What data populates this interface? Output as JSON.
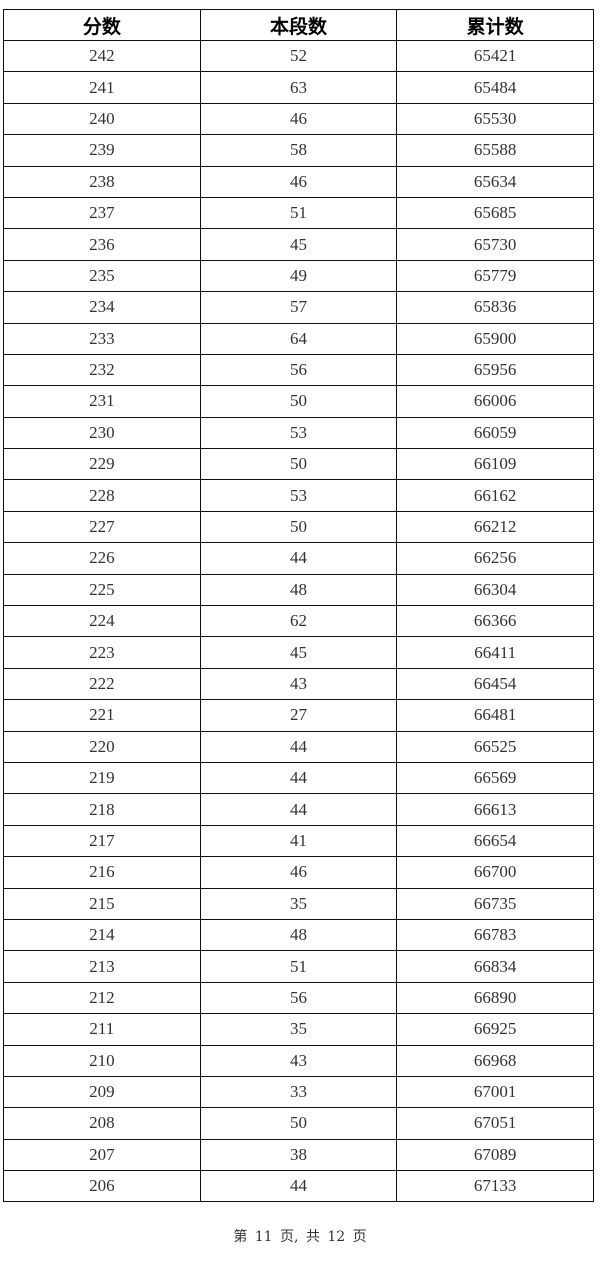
{
  "table": {
    "headers": [
      "分数",
      "本段数",
      "累计数"
    ],
    "rows": [
      [
        "242",
        "52",
        "65421"
      ],
      [
        "241",
        "63",
        "65484"
      ],
      [
        "240",
        "46",
        "65530"
      ],
      [
        "239",
        "58",
        "65588"
      ],
      [
        "238",
        "46",
        "65634"
      ],
      [
        "237",
        "51",
        "65685"
      ],
      [
        "236",
        "45",
        "65730"
      ],
      [
        "235",
        "49",
        "65779"
      ],
      [
        "234",
        "57",
        "65836"
      ],
      [
        "233",
        "64",
        "65900"
      ],
      [
        "232",
        "56",
        "65956"
      ],
      [
        "231",
        "50",
        "66006"
      ],
      [
        "230",
        "53",
        "66059"
      ],
      [
        "229",
        "50",
        "66109"
      ],
      [
        "228",
        "53",
        "66162"
      ],
      [
        "227",
        "50",
        "66212"
      ],
      [
        "226",
        "44",
        "66256"
      ],
      [
        "225",
        "48",
        "66304"
      ],
      [
        "224",
        "62",
        "66366"
      ],
      [
        "223",
        "45",
        "66411"
      ],
      [
        "222",
        "43",
        "66454"
      ],
      [
        "221",
        "27",
        "66481"
      ],
      [
        "220",
        "44",
        "66525"
      ],
      [
        "219",
        "44",
        "66569"
      ],
      [
        "218",
        "44",
        "66613"
      ],
      [
        "217",
        "41",
        "66654"
      ],
      [
        "216",
        "46",
        "66700"
      ],
      [
        "215",
        "35",
        "66735"
      ],
      [
        "214",
        "48",
        "66783"
      ],
      [
        "213",
        "51",
        "66834"
      ],
      [
        "212",
        "56",
        "66890"
      ],
      [
        "211",
        "35",
        "66925"
      ],
      [
        "210",
        "43",
        "66968"
      ],
      [
        "209",
        "33",
        "67001"
      ],
      [
        "208",
        "50",
        "67051"
      ],
      [
        "207",
        "38",
        "67089"
      ],
      [
        "206",
        "44",
        "67133"
      ]
    ]
  },
  "footer": {
    "page_label": "第 11 页, 共 12 页"
  }
}
